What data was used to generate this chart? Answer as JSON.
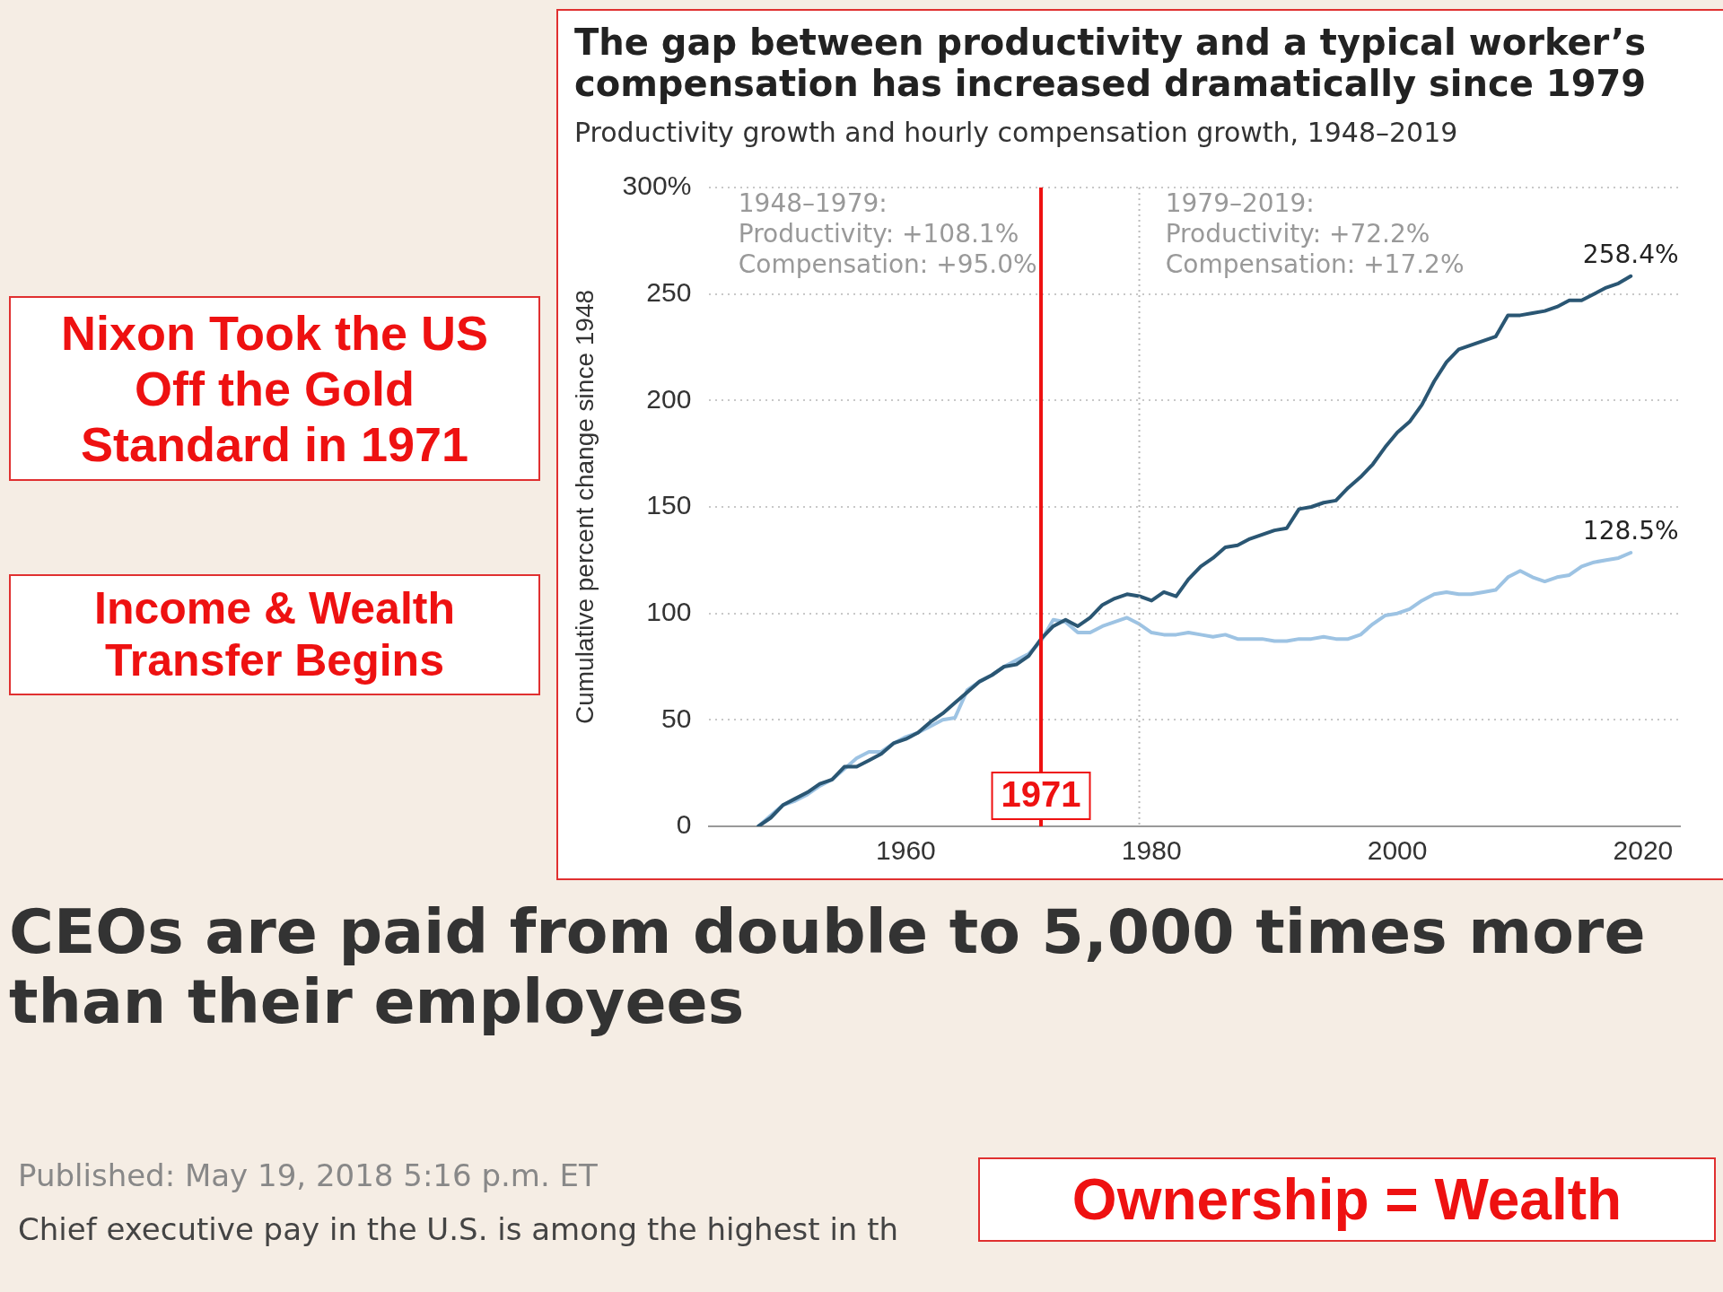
{
  "chart_data": {
    "type": "line",
    "title": "The gap between productivity and a typical worker’s compensation has increased dramatically since 1979",
    "subtitle": "Productivity growth and hourly compensation growth, 1948–2019",
    "ylabel": "Cumulative percent change since 1948",
    "x": [
      1948,
      1949,
      1950,
      1951,
      1952,
      1953,
      1954,
      1955,
      1956,
      1957,
      1958,
      1959,
      1960,
      1961,
      1962,
      1963,
      1964,
      1965,
      1966,
      1967,
      1968,
      1969,
      1970,
      1971,
      1972,
      1973,
      1974,
      1975,
      1976,
      1977,
      1978,
      1979,
      1980,
      1981,
      1982,
      1983,
      1984,
      1985,
      1986,
      1987,
      1988,
      1989,
      1990,
      1991,
      1992,
      1993,
      1994,
      1995,
      1996,
      1997,
      1998,
      1999,
      2000,
      2001,
      2002,
      2003,
      2004,
      2005,
      2006,
      2007,
      2008,
      2009,
      2010,
      2011,
      2012,
      2013,
      2014,
      2015,
      2016,
      2017,
      2018,
      2019
    ],
    "series": [
      {
        "color": "#2a5673",
        "values": [
          0,
          4,
          10,
          13,
          16,
          20,
          22,
          28,
          28,
          31,
          34,
          39,
          41,
          44,
          49,
          53,
          58,
          63,
          68,
          71,
          75,
          76,
          80,
          88,
          94,
          97,
          94,
          98,
          104,
          107,
          109,
          108.1,
          106,
          110,
          108,
          116,
          122,
          126,
          131,
          132,
          135,
          137,
          139,
          140,
          149,
          150,
          152,
          153,
          159,
          164,
          170,
          178,
          185,
          190,
          198,
          209,
          218,
          224,
          226,
          228,
          230,
          240,
          240,
          241,
          242,
          244,
          247,
          247,
          250,
          253,
          255,
          258.4
        ]
      },
      {
        "color": "#9dc3e3",
        "values": [
          0,
          5,
          10,
          12,
          15,
          19,
          22,
          27,
          32,
          35,
          35,
          39,
          42,
          44,
          47,
          50,
          51,
          64,
          68,
          71,
          75,
          78,
          81,
          87,
          97,
          96,
          91,
          91,
          94,
          96,
          98,
          95,
          91,
          90,
          90,
          91,
          90,
          89,
          90,
          88,
          88,
          88,
          87,
          87,
          88,
          88,
          89,
          88,
          88,
          90,
          95,
          99,
          100,
          102,
          106,
          109,
          110,
          109,
          109,
          110,
          111,
          117,
          120,
          117,
          115,
          117,
          118,
          122,
          124,
          125,
          126,
          128.5
        ]
      }
    ],
    "xlim": [
      1944,
      2023
    ],
    "xticks": [
      1960,
      1980,
      2000,
      2020
    ],
    "ylim": [
      0,
      300
    ],
    "yticks": [
      0,
      50,
      100,
      150,
      200,
      250,
      {
        "value": 300,
        "label": "300%"
      }
    ],
    "grid": "y",
    "ref_lines": [
      {
        "axis": "x",
        "value": 1979,
        "color": "#bbbbbb",
        "line_style": "dotted"
      },
      {
        "axis": "x",
        "value": 1971,
        "label": "1971",
        "color": "#ee1111",
        "line_style": "solid"
      }
    ],
    "annotations": [
      "1948–1979:\nProductivity: +108.1%\nCompensation: +95.0%",
      "1979–2019:\nProductivity: +72.2%\nCompensation: +17.2%",
      {
        "text": "258.4%",
        "x": 2019,
        "y": 258.4
      },
      {
        "text": "128.5%",
        "x": 2019,
        "y": 128.5
      },
      "Nixon Took the US Off the Gold Standard in 1971",
      "Income & Wealth Transfer Begins",
      "CEOs are paid from double to 5,000 times more than their employees",
      "Published: May 19, 2018 5:16 p.m. ET",
      "Chief executive pay in the U.S. is among the highest in th",
      "Ownership = Wealth"
    ]
  }
}
